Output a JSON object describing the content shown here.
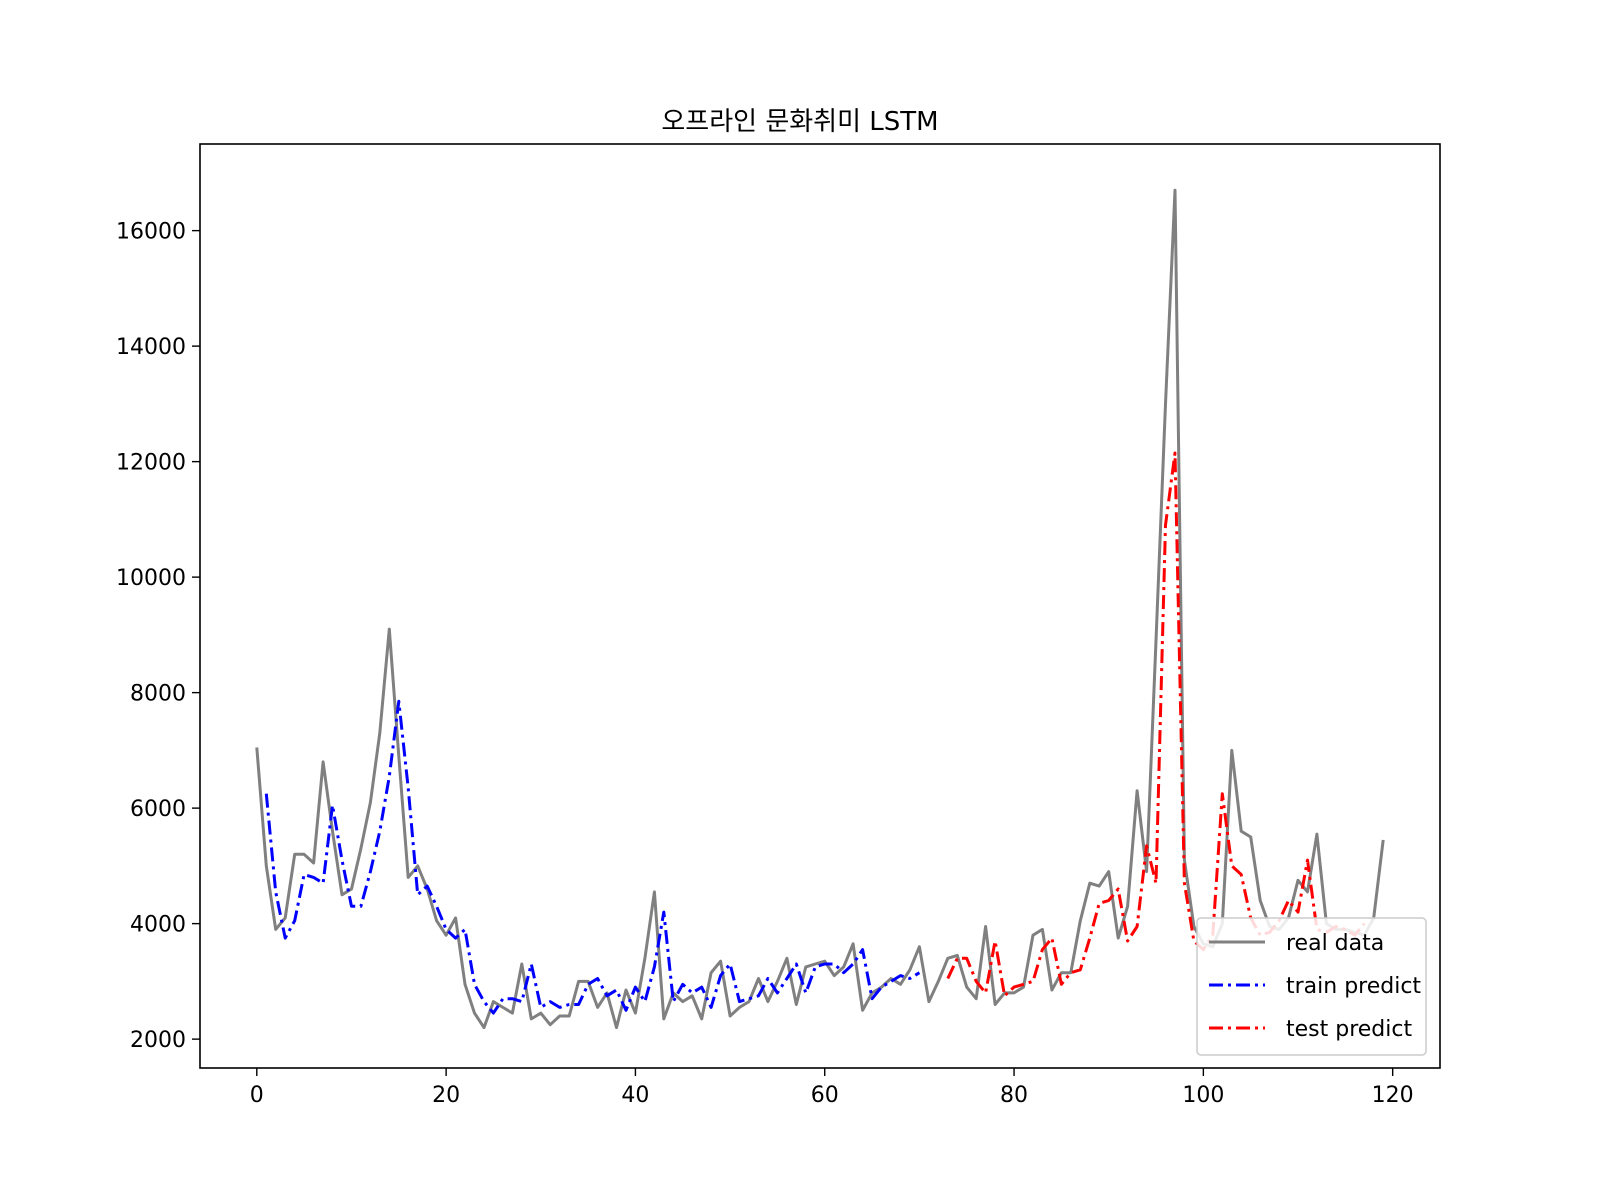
{
  "chart_data": {
    "type": "line",
    "title": "오프라인 문화취미 LSTM",
    "xlabel": "",
    "ylabel": "",
    "xlim": [
      -6,
      125
    ],
    "ylim": [
      1500,
      17500
    ],
    "xticks": [
      0,
      20,
      40,
      60,
      80,
      100,
      120
    ],
    "yticks": [
      2000,
      4000,
      6000,
      8000,
      10000,
      12000,
      14000,
      16000
    ],
    "grid": false,
    "legend_position": "lower right",
    "series": [
      {
        "name": "real data",
        "color": "#808080",
        "style": "solid",
        "x_start": 0,
        "values": [
          7050,
          5000,
          3900,
          4100,
          5200,
          5200,
          5050,
          6800,
          5600,
          4500,
          4600,
          5300,
          6100,
          7300,
          9100,
          6900,
          4800,
          5000,
          4600,
          4050,
          3800,
          4100,
          2950,
          2450,
          2200,
          2650,
          2550,
          2450,
          3300,
          2350,
          2450,
          2250,
          2400,
          2400,
          3000,
          3000,
          2550,
          2800,
          2200,
          2850,
          2450,
          3400,
          4550,
          2350,
          2800,
          2650,
          2750,
          2350,
          3150,
          3350,
          2400,
          2550,
          2650,
          3050,
          2650,
          3000,
          3400,
          2600,
          3250,
          3300,
          3350,
          3100,
          3250,
          3650,
          2500,
          2800,
          2900,
          3050,
          2950,
          3200,
          3600,
          2650,
          3000,
          3400,
          3450,
          2900,
          2700,
          3950,
          2600,
          2800,
          2800,
          2900,
          3800,
          3900,
          2850,
          3150,
          3150,
          4050,
          4700,
          4650,
          4900,
          3750,
          4300,
          6300,
          4900,
          8900,
          13000,
          16700,
          5100,
          3950,
          3650,
          3600,
          4000,
          7000,
          5600,
          5500,
          4400,
          3950,
          3900,
          4100,
          4750,
          4550,
          5550,
          4000,
          3900,
          3900,
          3850,
          3800,
          4100,
          5450
        ]
      },
      {
        "name": "train predict",
        "color": "#0000ff",
        "style": "dashdot",
        "x_start": 1,
        "values": [
          6250,
          4550,
          3750,
          4050,
          4850,
          4800,
          4700,
          6050,
          5100,
          4300,
          4300,
          4900,
          5600,
          6550,
          7850,
          6350,
          4500,
          4650,
          4300,
          3900,
          3750,
          3900,
          2950,
          2650,
          2450,
          2700,
          2700,
          2650,
          3300,
          2550,
          2650,
          2550,
          2600,
          2600,
          2950,
          3050,
          2750,
          2850,
          2500,
          2900,
          2650,
          3250,
          4200,
          2650,
          2950,
          2800,
          2900,
          2550,
          3100,
          3300,
          2650,
          2700,
          2750,
          3050,
          2800,
          3050,
          3300,
          2800,
          3250,
          3300,
          3300,
          3150,
          3300,
          3550,
          2700,
          2900,
          3000,
          3100,
          3050,
          3150
        ]
      },
      {
        "name": "test predict",
        "color": "#ff0000",
        "style": "dashdot",
        "x_start": 73,
        "values": [
          3050,
          3400,
          3400,
          3000,
          2800,
          3700,
          2750,
          2900,
          2950,
          3000,
          3550,
          3750,
          2950,
          3150,
          3200,
          3750,
          4350,
          4400,
          4600,
          3700,
          3950,
          5350,
          4700,
          10900,
          12150,
          4700,
          3700,
          3550,
          3800,
          6250,
          5000,
          4850,
          4100,
          3800,
          3850,
          4050,
          4400,
          4200,
          5100,
          3900,
          3850,
          3950,
          3900,
          3800,
          4000
        ]
      }
    ]
  }
}
